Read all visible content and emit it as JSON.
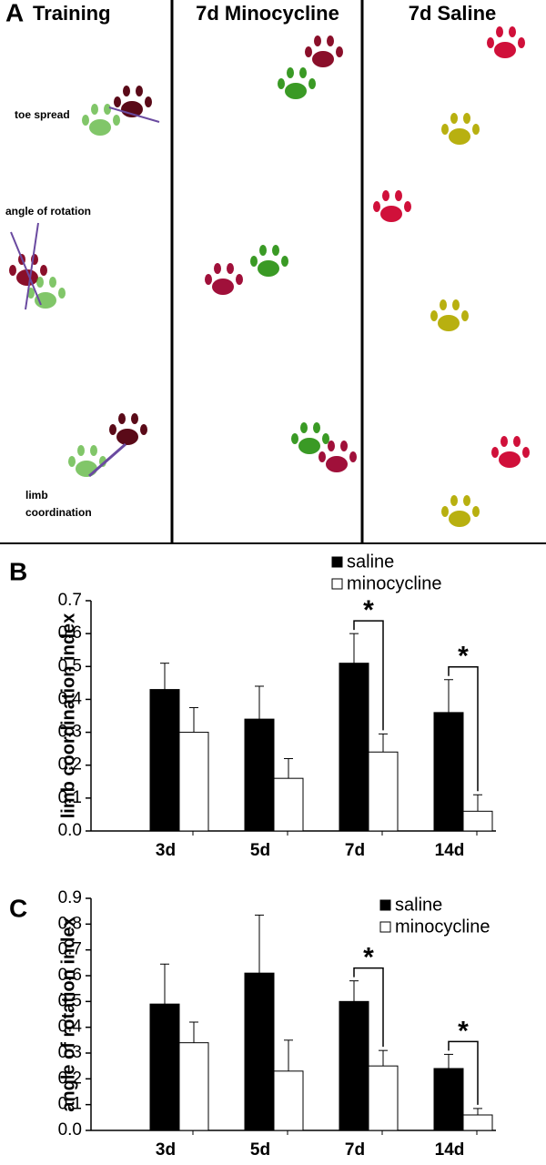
{
  "panel_a": {
    "label": "A",
    "headers": [
      "Training",
      "7d Minocycline",
      "7d Saline"
    ],
    "notes": [
      "toe spread",
      "angle of rotation",
      "limb",
      "coordination"
    ]
  },
  "chart_data": [
    {
      "type": "bar",
      "panel": "B",
      "ylabel": "limb coordination index",
      "categories": [
        "3d",
        "5d",
        "7d",
        "14d"
      ],
      "series": [
        {
          "name": "saline",
          "color": "#000000",
          "values": [
            0.43,
            0.34,
            0.51,
            0.36
          ],
          "errors": [
            0.08,
            0.1,
            0.09,
            0.1
          ]
        },
        {
          "name": "minocycline",
          "color": "#ffffff",
          "values": [
            0.3,
            0.16,
            0.24,
            0.06
          ],
          "errors": [
            0.075,
            0.06,
            0.055,
            0.05
          ]
        }
      ],
      "ylim": [
        0,
        0.7
      ],
      "yticks": [
        {
          "value": 0,
          "label": "0.0"
        },
        0.1,
        0.2,
        0.3,
        0.4,
        0.5,
        0.6,
        0.7
      ],
      "annotations": [
        {
          "text": "*",
          "x": "7d"
        },
        {
          "text": "*",
          "x": "14d"
        }
      ]
    },
    {
      "type": "bar",
      "panel": "C",
      "ylabel": "angle of rotation index",
      "categories": [
        "3d",
        "5d",
        "7d",
        "14d"
      ],
      "series": [
        {
          "name": "saline",
          "color": "#000000",
          "values": [
            0.49,
            0.61,
            0.5,
            0.24
          ],
          "errors": [
            0.155,
            0.225,
            0.08,
            0.055
          ]
        },
        {
          "name": "minocycline",
          "color": "#ffffff",
          "values": [
            0.34,
            0.23,
            0.25,
            0.06
          ],
          "errors": [
            0.08,
            0.12,
            0.06,
            0.025
          ]
        }
      ],
      "ylim": [
        0,
        0.9
      ],
      "yticks": [
        {
          "value": 0,
          "label": "0.0"
        },
        0.1,
        0.2,
        0.3,
        0.4,
        0.5,
        0.6,
        0.7,
        0.8,
        0.9
      ],
      "annotations": [
        {
          "text": "*",
          "x": "7d"
        },
        {
          "text": "*",
          "x": "14d"
        }
      ]
    }
  ]
}
